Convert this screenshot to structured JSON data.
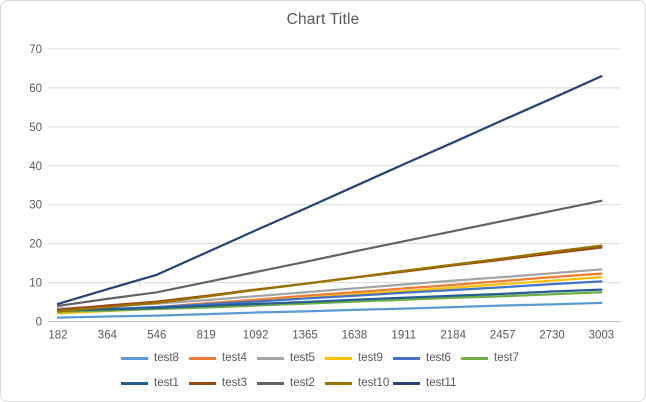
{
  "chart": {
    "title": "Chart Title",
    "text_color": "#595959",
    "gridline_color": "#d9d9d9",
    "axis_line_color": "#bfbfbf",
    "background": "#ffffff",
    "border_color": "#d9d9d9"
  },
  "chart_data": {
    "type": "line",
    "title": "Chart Title",
    "xlabel": "",
    "ylabel": "",
    "x": [
      182,
      364,
      546,
      819,
      1092,
      1365,
      1638,
      1911,
      2184,
      2457,
      2730,
      3003
    ],
    "ylim": [
      0,
      70
    ],
    "yticks": [
      0,
      10,
      20,
      30,
      40,
      50,
      60,
      70
    ],
    "grid": "horizontal",
    "legend_position": "bottom",
    "series": [
      {
        "name": "test8",
        "color": "#5b9bd5",
        "values": [
          1.0,
          1.3,
          1.5,
          1.9,
          2.3,
          2.6,
          3.0,
          3.3,
          3.7,
          4.1,
          4.4,
          4.8
        ]
      },
      {
        "name": "test4",
        "color": "#ed7d31",
        "values": [
          2.4,
          3.1,
          3.7,
          4.7,
          5.6,
          6.6,
          7.5,
          8.5,
          9.4,
          10.4,
          11.4,
          12.3
        ]
      },
      {
        "name": "test5",
        "color": "#a5a5a5",
        "values": [
          3.3,
          3.9,
          4.6,
          5.5,
          6.5,
          7.5,
          8.5,
          9.5,
          10.5,
          11.4,
          12.4,
          13.4
        ]
      },
      {
        "name": "test9",
        "color": "#ffc000",
        "values": [
          2.1,
          2.7,
          3.3,
          4.2,
          5.1,
          6.0,
          6.9,
          7.8,
          8.7,
          9.6,
          10.5,
          11.4
        ]
      },
      {
        "name": "test6",
        "color": "#4472c4",
        "values": [
          2.7,
          3.2,
          3.7,
          4.4,
          5.1,
          5.9,
          6.6,
          7.4,
          8.1,
          8.8,
          9.6,
          10.3
        ]
      },
      {
        "name": "test7",
        "color": "#70ad47",
        "values": [
          2.5,
          2.8,
          3.2,
          3.6,
          4.1,
          4.6,
          5.1,
          5.6,
          6.1,
          6.5,
          7.0,
          7.5
        ]
      },
      {
        "name": "test1",
        "color": "#255e91",
        "values": [
          2.8,
          3.1,
          3.5,
          4.0,
          4.5,
          5.0,
          5.6,
          6.1,
          6.6,
          7.1,
          7.7,
          8.2
        ]
      },
      {
        "name": "test3",
        "color": "#9e480e",
        "values": [
          3.0,
          4.1,
          5.1,
          6.6,
          8.2,
          9.7,
          11.3,
          12.8,
          14.4,
          15.9,
          17.5,
          19.0
        ]
      },
      {
        "name": "test2",
        "color": "#636363",
        "values": [
          4.0,
          5.8,
          7.5,
          10.1,
          12.7,
          15.3,
          18.0,
          20.6,
          23.2,
          25.8,
          28.4,
          31.0
        ]
      },
      {
        "name": "test10",
        "color": "#997300",
        "values": [
          2.6,
          3.7,
          4.8,
          6.4,
          8.1,
          9.7,
          11.3,
          13.0,
          14.6,
          16.2,
          17.9,
          19.5
        ]
      },
      {
        "name": "test11",
        "color": "#264478",
        "values": [
          4.5,
          8.3,
          12.0,
          17.7,
          23.4,
          29.0,
          34.7,
          40.4,
          46.0,
          51.7,
          57.3,
          63.0
        ]
      }
    ],
    "legend_rows": [
      [
        "test8",
        "test4",
        "test5",
        "test9",
        "test6",
        "test7"
      ],
      [
        "test1",
        "test3",
        "test2",
        "test10",
        "test11"
      ]
    ]
  }
}
